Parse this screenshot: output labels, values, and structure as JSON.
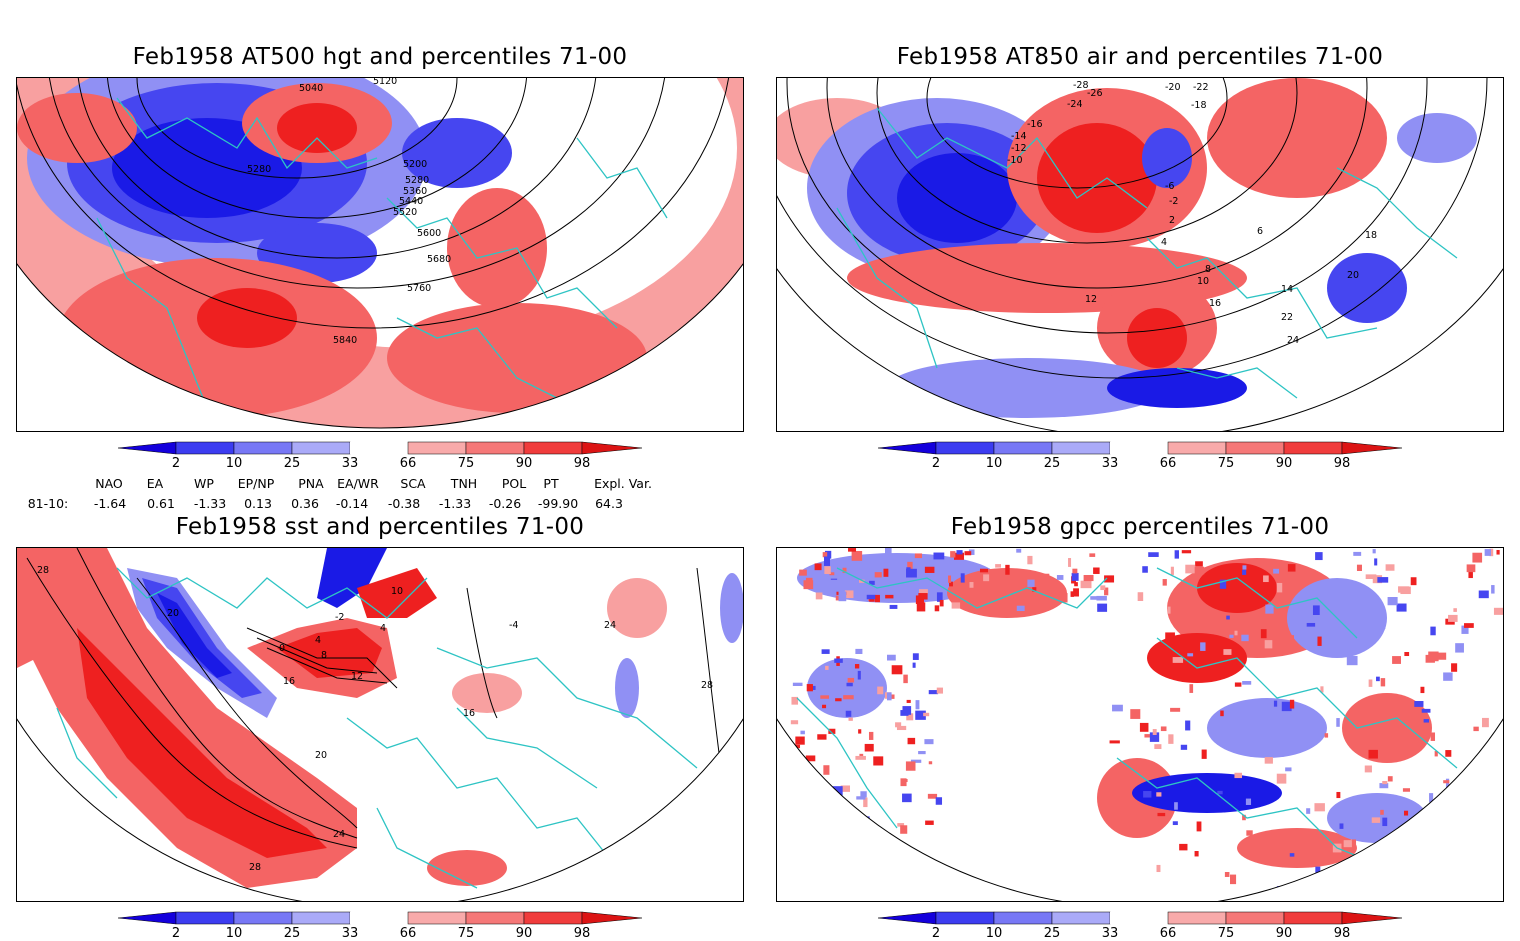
{
  "panels": [
    {
      "title": "Feb1958 AT500 hgt and percentiles 71-00",
      "contour_labels": [
        "5040",
        "5120",
        "5200",
        "5280",
        "5280",
        "5360",
        "5440",
        "5520",
        "5600",
        "5680",
        "5760",
        "5840"
      ]
    },
    {
      "title": "Feb1958 AT850 air and percentiles 71-00",
      "contour_labels": [
        "-28",
        "-26",
        "-24",
        "-20",
        "-22",
        "-18",
        "-16",
        "-14",
        "-12",
        "-10",
        "-6",
        "-2",
        "2",
        "4",
        "6",
        "8",
        "10",
        "12",
        "14",
        "16",
        "18",
        "20",
        "22",
        "24"
      ]
    },
    {
      "title": "Feb1958 sst and percentiles 71-00",
      "contour_labels": [
        "28",
        "20",
        "0",
        "4",
        "8",
        "12",
        "16",
        "-2",
        "10",
        "4",
        "-4",
        "24",
        "28",
        "20",
        "24",
        "28",
        "16"
      ]
    },
    {
      "title": "Feb1958 gpcc percentiles 71-00",
      "contour_labels": []
    }
  ],
  "colorbar": {
    "labels": [
      "2",
      "10",
      "25",
      "33",
      "66",
      "75",
      "90",
      "98"
    ],
    "colors": [
      "#1400dc",
      "#3c3cf0",
      "#7878f5",
      "#aaaaf8",
      "#ffffff",
      "#f8aaaa",
      "#f57878",
      "#f03c3c",
      "#dc1414"
    ]
  },
  "indices": {
    "headers": [
      "NAO",
      "EA",
      "WP",
      "EP/NP",
      "PNA",
      "EA/WR",
      "SCA",
      "TNH",
      "POL",
      "PT",
      "Expl. Var."
    ],
    "row_label": "81-10:",
    "values": [
      "-1.64",
      "0.61",
      "-1.33",
      "0.13",
      "0.36",
      "-0.14",
      "-0.38",
      "-1.33",
      "-0.26",
      "-99.90",
      "64.3"
    ]
  },
  "colors": {
    "coast": "#2ec4c4",
    "blue_dark": "#1a1ae6",
    "blue_mid": "#4646f0",
    "blue_light": "#9090f4",
    "red_light": "#f8a0a0",
    "red_mid": "#f46464",
    "red_dark": "#ee2020"
  }
}
